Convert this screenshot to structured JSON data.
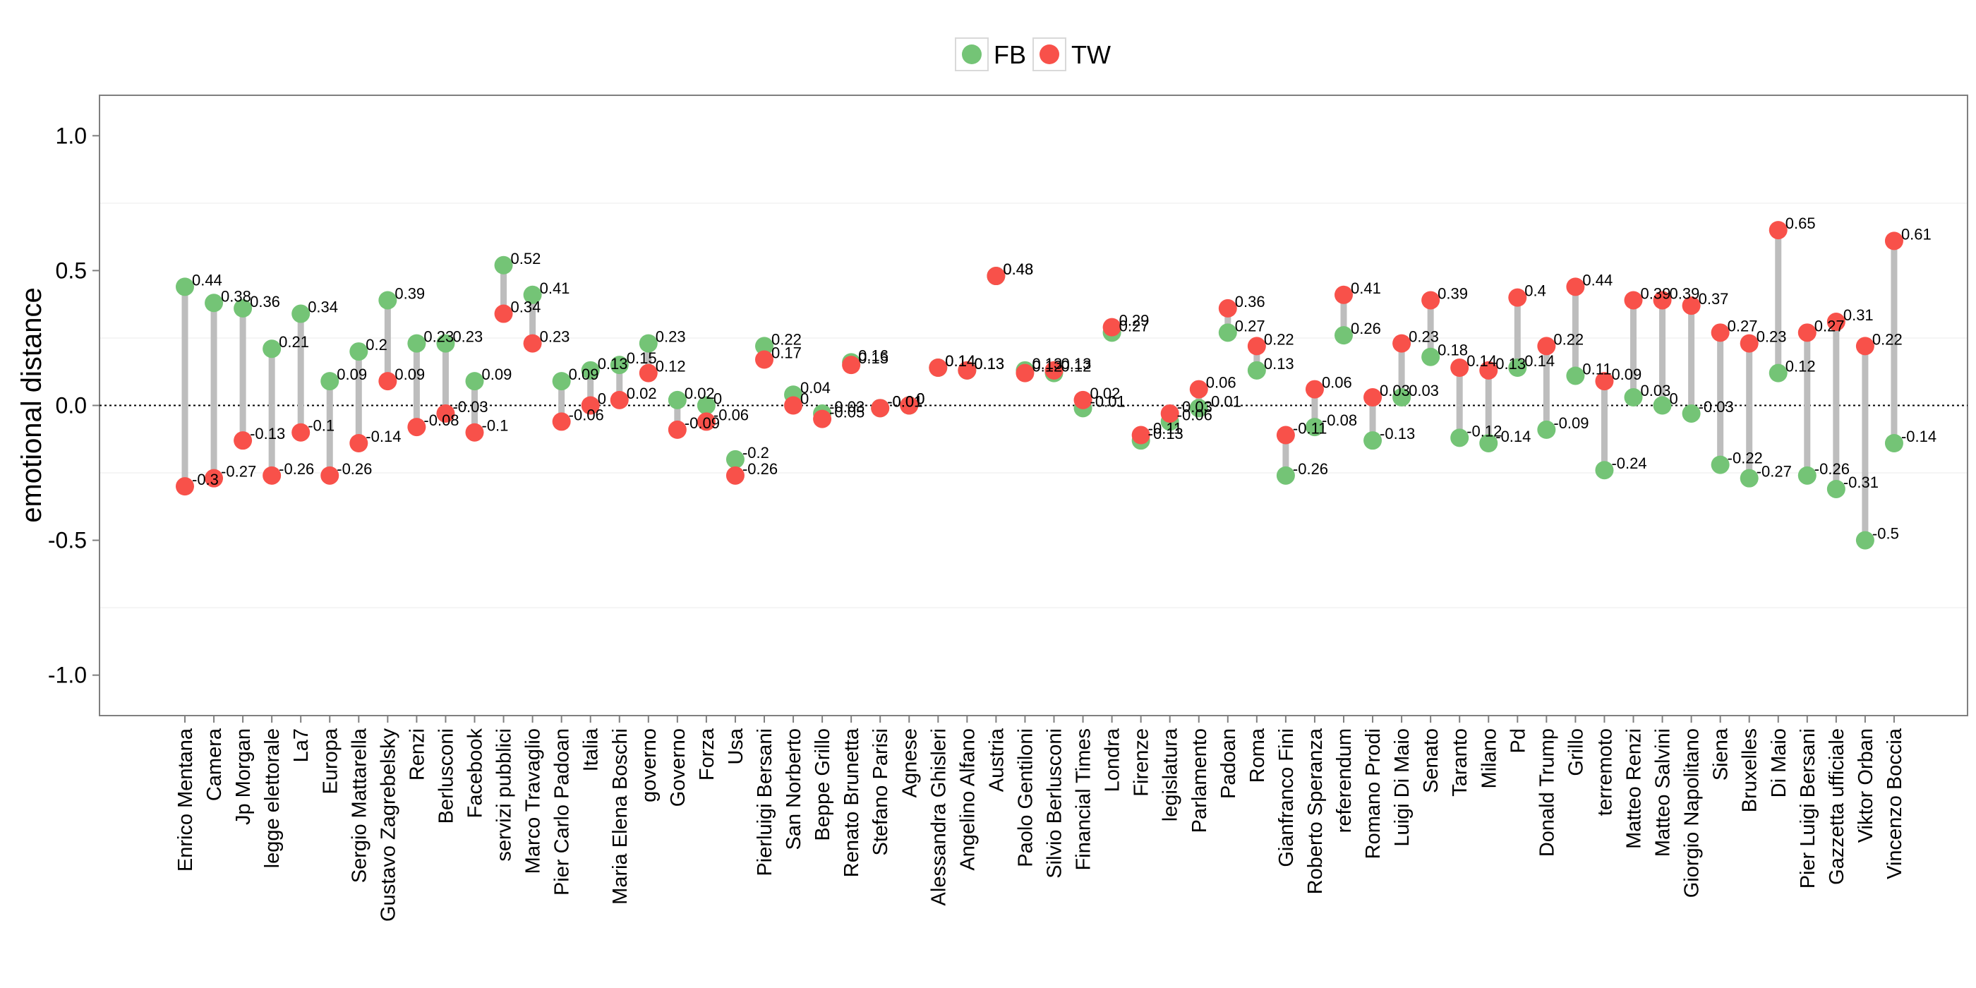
{
  "chart_data": {
    "type": "scatter",
    "subtype": "dumbbell",
    "title": "",
    "xlabel": "",
    "ylabel": "emotional distance",
    "ylim": [
      -1.15,
      1.15
    ],
    "yticks": [
      1.0,
      0.5,
      0.0,
      -0.5,
      -1.0
    ],
    "ytick_labels": [
      "1.0",
      "0.5",
      "0.0",
      "-0.5",
      "-1.0"
    ],
    "reference_line": 0,
    "legend": {
      "position": "top",
      "entries": [
        {
          "name": "FB",
          "color": "#74c476"
        },
        {
          "name": "TW",
          "color": "#f8514a"
        }
      ]
    },
    "segment_color": "#bdbdbd",
    "categories": [
      "Enrico Mentana",
      "Camera",
      "Jp Morgan",
      "legge elettorale",
      "La7",
      "Europa",
      "Sergio Mattarella",
      "Gustavo Zagrebelsky",
      "Renzi",
      "Berlusconi",
      "Facebook",
      "servizi pubblici",
      "Marco Travaglio",
      "Pier Carlo Padoan",
      "Italia",
      "Maria Elena Boschi",
      "governo",
      "Governo",
      "Forza",
      "Usa",
      "Pierluigi Bersani",
      "San Norberto",
      "Beppe Grillo",
      "Renato Brunetta",
      "Stefano Parisi",
      "Agnese",
      "Alessandra Ghisleri",
      "Angelino Alfano",
      "Austria",
      "Paolo Gentiloni",
      "Silvio Berlusconi",
      "Financial Times",
      "Londra",
      "Firenze",
      "legislatura",
      "Parlamento",
      "Padoan",
      "Roma",
      "Gianfranco Fini",
      "Roberto Speranza",
      "referendum",
      "Romano Prodi",
      "Luigi Di Maio",
      "Senato",
      "Taranto",
      "Milano",
      "Pd",
      "Donald Trump",
      "Grillo",
      "terremoto",
      "Matteo Renzi",
      "Matteo Salvini",
      "Giorgio Napolitano",
      "Siena",
      "Bruxelles",
      "Di Maio",
      "Pier Luigi Bersani",
      "Gazzetta ufficiale",
      "Viktor Orban",
      "Vincenzo Boccia"
    ],
    "series": [
      {
        "name": "FB",
        "color": "#74c476",
        "values": [
          0.44,
          0.38,
          0.36,
          0.21,
          0.34,
          0.09,
          0.2,
          0.39,
          0.23,
          0.23,
          0.09,
          0.52,
          0.41,
          0.09,
          0.13,
          0.15,
          0.23,
          0.02,
          0,
          -0.2,
          0.22,
          0.04,
          -0.03,
          0.16,
          -0.01,
          0,
          0.14,
          0.13,
          0.48,
          0.13,
          0.12,
          -0.01,
          0.27,
          -0.13,
          -0.06,
          -0.01,
          0.27,
          0.13,
          -0.26,
          -0.08,
          0.26,
          -0.13,
          0.03,
          0.18,
          -0.12,
          -0.14,
          0.14,
          -0.09,
          0.11,
          -0.24,
          0.03,
          0,
          -0.03,
          -0.22,
          -0.27,
          0.12,
          -0.26,
          -0.31,
          -0.5,
          -0.14
        ],
        "labels": [
          "0.44",
          "0.38",
          "0.36",
          "0.21",
          "0.34",
          "0.09",
          "0.2",
          "0.39",
          "0.23",
          "0.23",
          "0.09",
          "0.52",
          "0.41",
          "0.09",
          "0.13",
          "0.15",
          "0.23",
          "0.02",
          "0",
          "-0.2",
          "0.22",
          "0.04",
          "-0.03",
          "0.16",
          "-0.01",
          "0",
          "0.14",
          "0.13",
          "0.48",
          "0.13",
          "0.12",
          "-0.01",
          "0.27",
          "-0.13",
          "-0.06",
          "-0.01",
          "0.27",
          "0.13",
          "-0.26",
          "-0.08",
          "0.26",
          "-0.13",
          "0.03",
          "0.18",
          "-0.12",
          "-0.14",
          "0.14",
          "-0.09",
          "0.11",
          "-0.24",
          "0.03",
          "0",
          "-0.03",
          "-0.22",
          "-0.27",
          "0.12",
          "-0.26",
          "-0.31",
          "-0.5",
          "-0.14"
        ]
      },
      {
        "name": "TW",
        "color": "#f8514a",
        "values": [
          -0.3,
          -0.27,
          -0.13,
          -0.26,
          -0.1,
          -0.26,
          -0.14,
          0.09,
          -0.08,
          -0.03,
          -0.1,
          0.34,
          0.23,
          -0.06,
          0,
          0.02,
          0.12,
          -0.09,
          -0.06,
          -0.26,
          0.17,
          0,
          -0.05,
          0.15,
          -0.01,
          0,
          0.14,
          0.13,
          0.48,
          0.12,
          0.13,
          0.02,
          0.29,
          -0.11,
          -0.03,
          0.06,
          0.36,
          0.22,
          -0.11,
          0.06,
          0.41,
          0.03,
          0.23,
          0.39,
          0.14,
          0.13,
          0.4,
          0.22,
          0.44,
          0.09,
          0.39,
          0.39,
          0.37,
          0.27,
          0.23,
          0.65,
          0.27,
          0.31,
          0.22,
          0.61
        ],
        "labels": [
          "-0.3",
          "-0.27",
          "-0.13",
          "-0.26",
          "-0.1",
          "-0.26",
          "-0.14",
          "0.09",
          "-0.08",
          "-0.03",
          "-0.1",
          "0.34",
          "0.23",
          "-0.06",
          "0",
          "0.02",
          "0.12",
          "-0.09",
          "-0.06",
          "-0.26",
          "0.17",
          "0",
          "-0.05",
          "0.15",
          "-0.01",
          "0",
          "0.14",
          "0.13",
          "0.48",
          "0.12",
          "0.13",
          "0.02",
          "0.29",
          "-0.11",
          "-0.03",
          "0.06",
          "0.36",
          "0.22",
          "-0.11",
          "0.06",
          "0.41",
          "0.03",
          "0.23",
          "0.39",
          "0.14",
          "0.13",
          "0.4",
          "0.22",
          "0.44",
          "0.09",
          "0.39",
          "0.39",
          "0.37",
          "0.27",
          "0.23",
          "0.65",
          "0.27",
          "0.31",
          "0.22",
          "0.61"
        ]
      }
    ]
  }
}
